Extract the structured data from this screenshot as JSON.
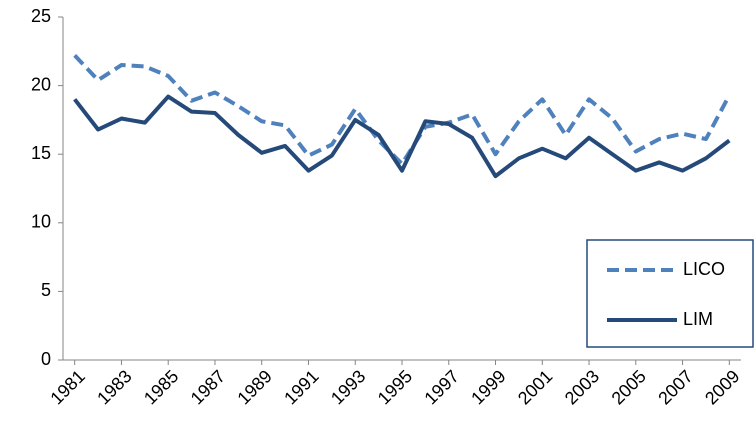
{
  "chart_data": {
    "type": "line",
    "x": [
      1981,
      1982,
      1983,
      1984,
      1985,
      1986,
      1987,
      1988,
      1989,
      1990,
      1991,
      1992,
      1993,
      1994,
      1995,
      1996,
      1997,
      1998,
      1999,
      2000,
      2001,
      2002,
      2003,
      2004,
      2005,
      2006,
      2007,
      2008,
      2009
    ],
    "series": [
      {
        "name": "LICO",
        "color": "#4f81bd",
        "style": "dashed",
        "values": [
          22.2,
          20.4,
          21.5,
          21.4,
          20.7,
          18.9,
          19.5,
          18.5,
          17.4,
          17.1,
          14.9,
          15.7,
          18.3,
          16.0,
          14.3,
          17.0,
          17.3,
          17.9,
          15.0,
          17.4,
          19.0,
          16.4,
          19.0,
          17.6,
          15.2,
          16.1,
          16.5,
          16.1,
          19.3
        ]
      },
      {
        "name": "LIM",
        "color": "#254a7a",
        "style": "solid",
        "values": [
          19.0,
          16.8,
          17.6,
          17.3,
          19.2,
          18.1,
          18.0,
          16.4,
          15.1,
          15.6,
          13.8,
          14.9,
          17.5,
          16.4,
          13.8,
          17.4,
          17.2,
          16.2,
          13.4,
          14.7,
          15.4,
          14.7,
          16.2,
          15.0,
          13.8,
          14.4,
          13.8,
          14.7,
          16.0
        ]
      }
    ],
    "xlim": [
      1980.5,
      2009.5
    ],
    "xticks": [
      1981,
      1983,
      1985,
      1987,
      1989,
      1991,
      1993,
      1995,
      1997,
      1999,
      2001,
      2003,
      2005,
      2007,
      2009
    ],
    "ylim": [
      0,
      25
    ],
    "yticks": [
      0,
      5,
      10,
      15,
      20,
      25
    ],
    "grid": false,
    "legend": "right"
  }
}
